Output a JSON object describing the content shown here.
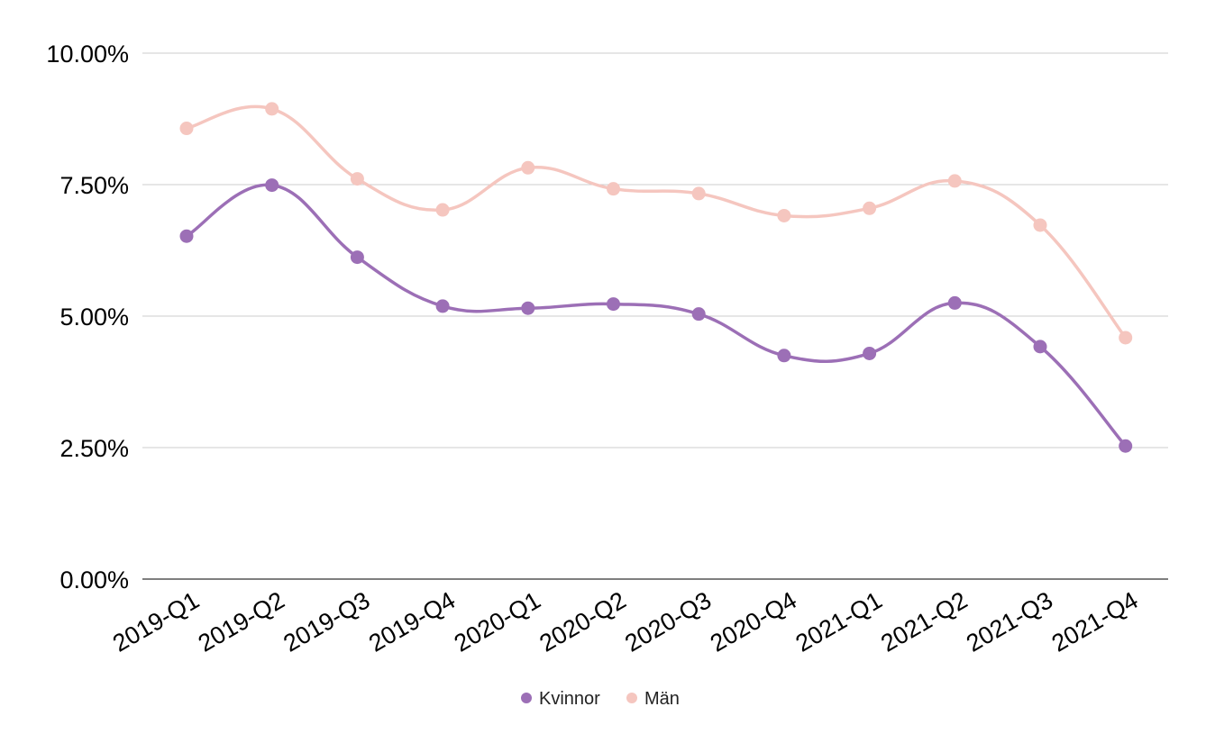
{
  "chart_data": {
    "type": "line",
    "title": "",
    "xlabel": "",
    "ylabel": "",
    "categories": [
      "2019-Q1",
      "2019-Q2",
      "2019-Q3",
      "2019-Q4",
      "2020-Q1",
      "2020-Q2",
      "2020-Q3",
      "2020-Q4",
      "2021-Q1",
      "2021-Q2",
      "2021-Q3",
      "2021-Q4"
    ],
    "series": [
      {
        "name": "Kvinnor",
        "color": "#9c6fb6",
        "values": [
          6.52,
          7.49,
          6.12,
          5.19,
          5.15,
          5.23,
          5.04,
          4.25,
          4.29,
          5.25,
          4.42,
          2.53
        ]
      },
      {
        "name": "Män",
        "color": "#f5c6bf",
        "values": [
          8.57,
          8.94,
          7.61,
          7.02,
          7.82,
          7.42,
          7.33,
          6.91,
          7.05,
          7.57,
          6.73,
          4.59
        ]
      }
    ],
    "ylim": [
      0,
      10
    ],
    "yticks": [
      0,
      2.5,
      5,
      7.5,
      10
    ],
    "ytick_labels": [
      "0.00%",
      "2.50%",
      "5.00%",
      "7.50%",
      "10.00%"
    ],
    "grid": true,
    "legend_position": "bottom-center",
    "smooth": true
  }
}
